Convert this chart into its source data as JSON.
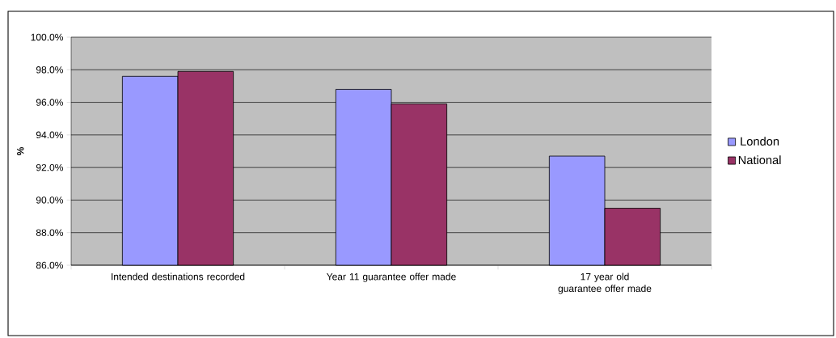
{
  "chart_data": {
    "type": "bar",
    "ylabel": "**%**",
    "categories": [
      "Intended destinations recorded",
      "Year 11 guarantee offer made",
      "17 year old guarantee offer made"
    ],
    "series": [
      {
        "name": "London",
        "color": "#9999ff",
        "values": [
          97.6,
          96.8,
          92.7
        ]
      },
      {
        "name": "National",
        "color": "#993366",
        "values": [
          97.9,
          95.9,
          89.5
        ]
      }
    ],
    "ylim": [
      86,
      100
    ],
    "yticks": [
      {
        "value": 86,
        "label": "86.0%"
      },
      {
        "value": 88,
        "label": "88.0%"
      },
      {
        "value": 90,
        "label": "90.0%"
      },
      {
        "value": 92,
        "label": "92.0%"
      },
      {
        "value": 94,
        "label": "94.0%"
      },
      {
        "value": 96,
        "label": "96.0%"
      },
      {
        "value": 98,
        "label": "98.0%"
      },
      {
        "value": 100,
        "label": "100.0%"
      }
    ],
    "grid": "y",
    "legend": "right"
  }
}
